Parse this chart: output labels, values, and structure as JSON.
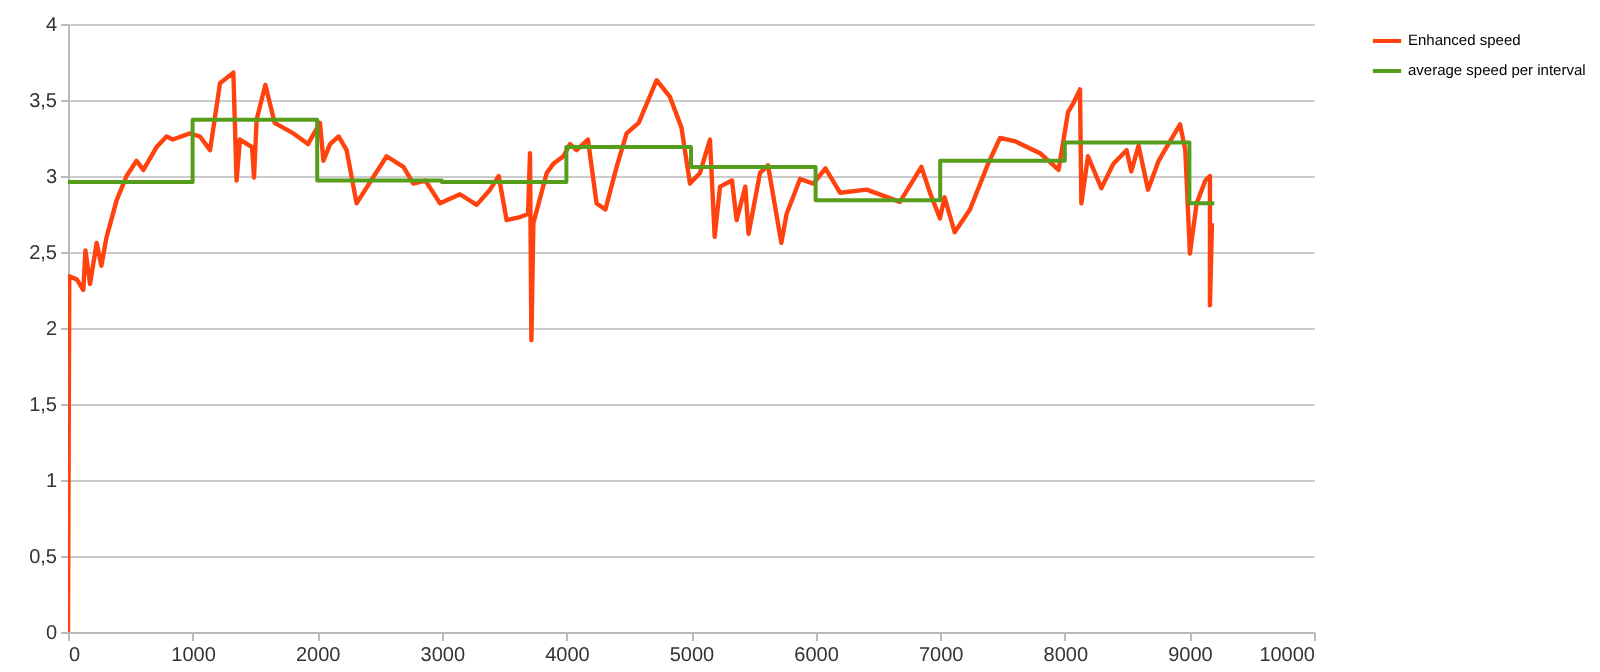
{
  "chart_data": {
    "type": "line",
    "xlim": [
      0,
      10000
    ],
    "xticks": [
      0,
      1000,
      2000,
      3000,
      4000,
      5000,
      6000,
      7000,
      8000,
      9000,
      10000
    ],
    "ylim": [
      0,
      4
    ],
    "yticks": [
      0,
      {
        "value": 0.5,
        "label": "0,5"
      },
      1,
      {
        "value": 1.5,
        "label": "1,5"
      },
      2,
      {
        "value": 2.5,
        "label": "2,5"
      },
      3,
      {
        "value": 3.5,
        "label": "3,5"
      },
      4
    ],
    "grid": "y",
    "legend": "right",
    "line_style": "solid",
    "marker": "none",
    "series": [
      {
        "name": "Enhanced speed",
        "color": "#ff420e",
        "type": "line",
        "x": [
          0,
          10,
          70,
          123,
          140,
          177,
          230,
          268,
          310,
          390,
          470,
          550,
          605,
          711,
          791,
          840,
          979,
          1059,
          1140,
          1220,
          1327,
          1353,
          1380,
          1477,
          1493,
          1514,
          1584,
          1658,
          1809,
          1926,
          2022,
          2050,
          2103,
          2172,
          2236,
          2316,
          2557,
          2692,
          2772,
          2868,
          2986,
          3146,
          3280,
          3387,
          3457,
          3520,
          3628,
          3692,
          3708,
          3719,
          3735,
          3842,
          3895,
          3976,
          4029,
          4082,
          4173,
          4242,
          4313,
          4403,
          4483,
          4580,
          4724,
          4831,
          4923,
          4992,
          5072,
          5152,
          5190,
          5233,
          5329,
          5366,
          5436,
          5462,
          5554,
          5618,
          5725,
          5767,
          5875,
          5982,
          6079,
          6196,
          6410,
          6677,
          6849,
          6918,
          6998,
          7035,
          7116,
          7239,
          7384,
          7480,
          7597,
          7801,
          7950,
          8026,
          8069,
          8122,
          8133,
          8186,
          8293,
          8390,
          8496,
          8534,
          8592,
          8668,
          8753,
          8817,
          8925,
          8967,
          9004,
          9058,
          9128,
          9165,
          9165,
          9181
        ],
        "values": [
          0,
          2.34,
          2.32,
          2.25,
          2.51,
          2.29,
          2.56,
          2.41,
          2.6,
          2.84,
          3.0,
          3.1,
          3.04,
          3.19,
          3.26,
          3.24,
          3.28,
          3.26,
          3.17,
          3.61,
          3.68,
          2.97,
          3.24,
          3.19,
          2.99,
          3.37,
          3.6,
          3.35,
          3.28,
          3.21,
          3.35,
          3.1,
          3.21,
          3.26,
          3.17,
          2.82,
          3.13,
          3.06,
          2.95,
          2.97,
          2.82,
          2.88,
          2.81,
          2.91,
          3.0,
          2.71,
          2.73,
          2.75,
          3.15,
          1.92,
          2.69,
          3.02,
          3.08,
          3.13,
          3.21,
          3.17,
          3.24,
          2.82,
          2.78,
          3.06,
          3.28,
          3.35,
          3.63,
          3.52,
          3.32,
          2.95,
          3.02,
          3.24,
          2.6,
          2.93,
          2.97,
          2.71,
          2.93,
          2.62,
          3.02,
          3.07,
          2.56,
          2.75,
          2.98,
          2.95,
          3.05,
          2.89,
          2.91,
          2.83,
          3.06,
          2.89,
          2.72,
          2.86,
          2.63,
          2.78,
          3.08,
          3.25,
          3.23,
          3.15,
          3.04,
          3.42,
          3.48,
          3.57,
          2.82,
          3.13,
          2.92,
          3.08,
          3.17,
          3.03,
          3.2,
          2.91,
          3.1,
          3.19,
          3.34,
          3.17,
          2.49,
          2.82,
          2.97,
          3.0,
          2.15,
          2.69
        ]
      },
      {
        "name": "average speed per interval",
        "color": "#579d1c",
        "type": "step",
        "x": [
          0,
          1000,
          2000,
          3000,
          4000,
          5000,
          6000,
          7000,
          8000,
          9000,
          9200
        ],
        "values": [
          2.96,
          3.37,
          2.97,
          2.96,
          3.19,
          3.06,
          2.84,
          3.1,
          3.22,
          2.82,
          2.82
        ]
      }
    ]
  }
}
